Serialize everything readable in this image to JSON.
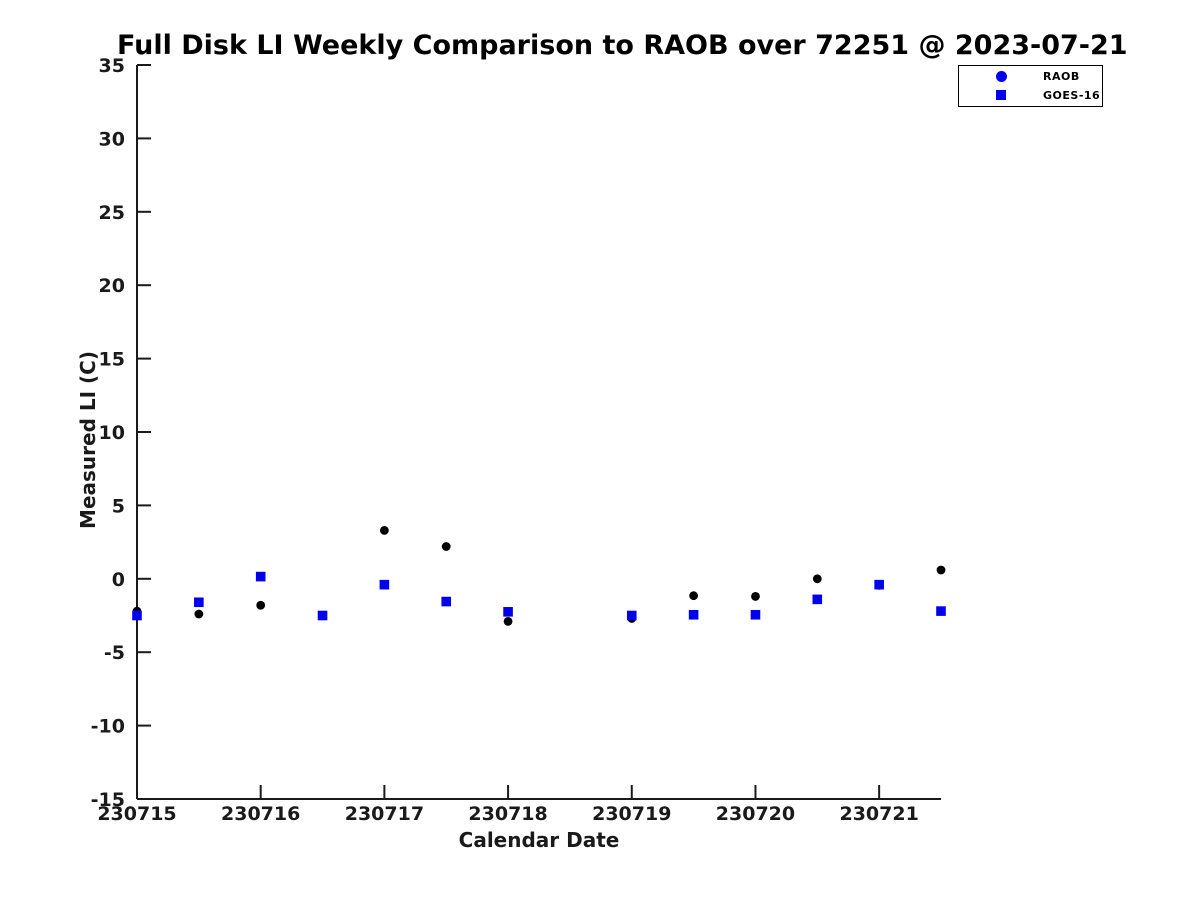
{
  "chart_data": {
    "type": "scatter",
    "title": "Full Disk LI Weekly Comparison to RAOB over 72251 @ 2023-07-21",
    "xlabel": "Calendar Date",
    "ylabel": "Measured LI (C)",
    "xlim": [
      230715,
      230721.5
    ],
    "ylim": [
      -15,
      35
    ],
    "grid": false,
    "legend_position": "top-right",
    "axis_color": "#1a1a1a",
    "x_ticks": [
      {
        "value": 230715,
        "label": "230715"
      },
      {
        "value": 230716,
        "label": "230716"
      },
      {
        "value": 230717,
        "label": "230717"
      },
      {
        "value": 230718,
        "label": "230718"
      },
      {
        "value": 230719,
        "label": "230719"
      },
      {
        "value": 230720,
        "label": "230720"
      },
      {
        "value": 230721,
        "label": "230721"
      }
    ],
    "y_ticks": [
      {
        "value": -15,
        "label": "-15"
      },
      {
        "value": -10,
        "label": "-10"
      },
      {
        "value": -5,
        "label": "-5"
      },
      {
        "value": 0,
        "label": "0"
      },
      {
        "value": 5,
        "label": "5"
      },
      {
        "value": 10,
        "label": "10"
      },
      {
        "value": 15,
        "label": "15"
      },
      {
        "value": 20,
        "label": "20"
      },
      {
        "value": 25,
        "label": "25"
      },
      {
        "value": 30,
        "label": "30"
      },
      {
        "value": 35,
        "label": "35"
      }
    ],
    "x": [
      230715.0,
      230715.5,
      230716.0,
      230716.5,
      230717.0,
      230717.5,
      230718.0,
      230719.0,
      230719.5,
      230720.0,
      230720.5,
      230721.0,
      230721.5
    ],
    "series": [
      {
        "name": "RAOB",
        "marker": "circle",
        "color": "#000000",
        "legend_marker_color": "#0000ee",
        "values": [
          -2.2,
          -2.4,
          -1.8,
          -2.5,
          3.3,
          2.2,
          -2.9,
          -2.7,
          -1.15,
          -1.2,
          0.0,
          -0.45,
          0.6
        ]
      },
      {
        "name": "GOES-16",
        "marker": "square",
        "color": "#0000ee",
        "legend_marker_color": "#0000ee",
        "values": [
          -2.5,
          -1.6,
          0.15,
          -2.5,
          -0.4,
          -1.55,
          -2.25,
          -2.5,
          -2.45,
          -2.45,
          -1.4,
          -0.4,
          -2.2
        ]
      }
    ]
  }
}
